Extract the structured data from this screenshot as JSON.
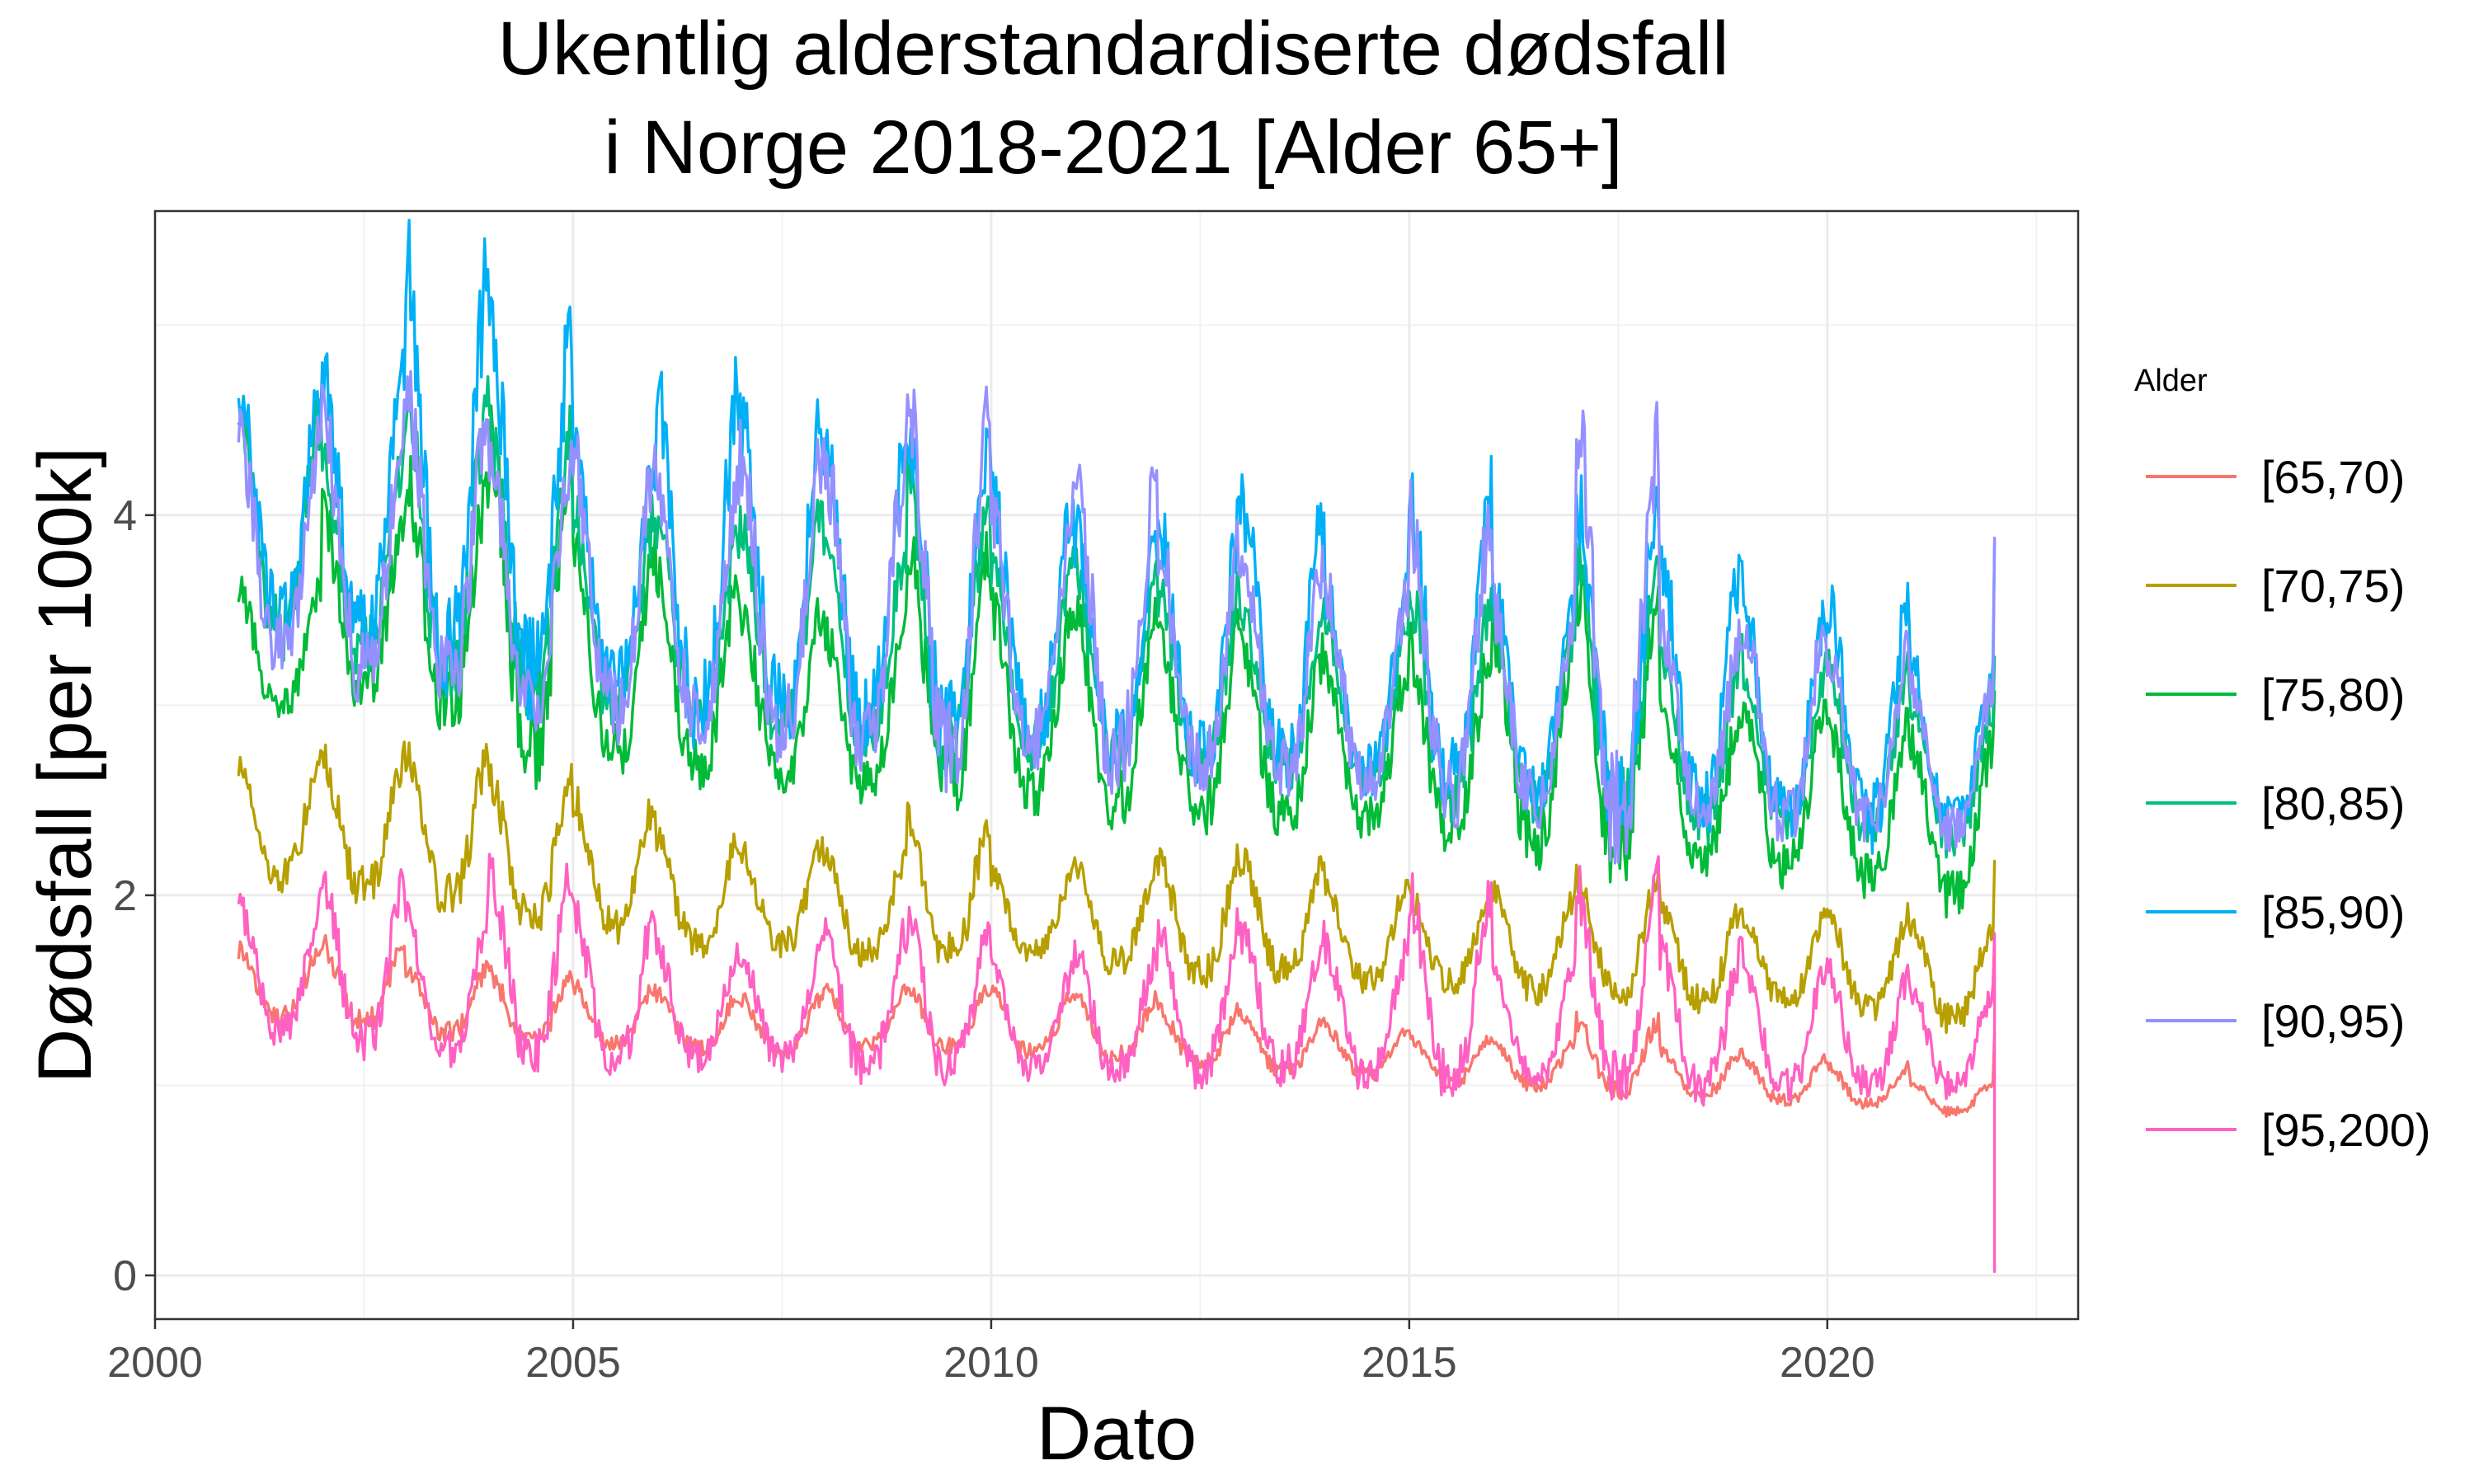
{
  "chart_data": {
    "type": "line",
    "title": [
      "Ukentlig alderstandardiserte dødsfall",
      "i Norge 2018-2021 [Alder 65+]"
    ],
    "xlabel": "Dato",
    "ylabel": "Dødsfall [per 100k]",
    "xlim": [
      2000,
      2023
    ],
    "ylim": [
      -0.23,
      5.6
    ],
    "x_ticks": [
      2000,
      2005,
      2010,
      2015,
      2020
    ],
    "x_tick_labels": [
      "2000",
      "2005",
      "2010",
      "2015",
      "2020"
    ],
    "y_ticks": [
      0,
      2,
      4
    ],
    "y_tick_labels": [
      "0",
      "2",
      "4"
    ],
    "grid": true,
    "legend": {
      "title": "Alder",
      "position": "right"
    },
    "x_start": 2001.0,
    "x_end": 2022.0,
    "weeks_per_year": 52,
    "series": [
      {
        "name": "[65,70)",
        "color": "#F8766D",
        "yearly_winter_peak": [
          1.72,
          1.74,
          1.62,
          1.58,
          1.52,
          1.48,
          1.46,
          1.5,
          1.52,
          1.48,
          1.46,
          1.4,
          1.34,
          1.3,
          1.26,
          1.22,
          1.34,
          1.18,
          1.14,
          1.1,
          1.02,
          1.24
        ],
        "yearly_summer_low": [
          1.36,
          1.34,
          1.28,
          1.24,
          1.22,
          1.2,
          1.18,
          1.22,
          1.2,
          1.18,
          1.16,
          1.12,
          1.08,
          1.06,
          1.02,
          1.0,
          0.98,
          0.96,
          0.92,
          0.9,
          0.86,
          0.94
        ]
      },
      {
        "name": "[70,75)",
        "color": "#B79F00",
        "yearly_winter_peak": [
          2.7,
          2.72,
          2.75,
          2.6,
          2.5,
          2.3,
          2.25,
          2.2,
          2.4,
          2.1,
          2.15,
          2.2,
          2.2,
          2.05,
          2.0,
          2.0,
          2.1,
          1.95,
          1.9,
          1.9,
          1.85,
          2.1
        ],
        "yearly_summer_low": [
          2.1,
          2.05,
          2.0,
          1.9,
          1.85,
          1.75,
          1.75,
          1.7,
          1.7,
          1.7,
          1.65,
          1.6,
          1.6,
          1.55,
          1.55,
          1.5,
          1.5,
          1.45,
          1.45,
          1.4,
          1.35,
          1.4
        ]
      },
      {
        "name": "[75,80)",
        "color": "#00BA38",
        "yearly_winter_peak": [
          3.6,
          4.0,
          4.2,
          4.4,
          3.8,
          3.7,
          3.5,
          3.4,
          3.8,
          3.5,
          3.5,
          3.4,
          3.3,
          3.2,
          3.3,
          3.4,
          3.6,
          3.0,
          3.0,
          2.9,
          2.8,
          3.0
        ],
        "yearly_summer_low": [
          3.0,
          3.1,
          3.0,
          2.8,
          2.75,
          2.7,
          2.65,
          2.6,
          2.6,
          2.55,
          2.5,
          2.45,
          2.4,
          2.4,
          2.35,
          2.3,
          2.25,
          2.2,
          2.15,
          2.1,
          2.0,
          2.2
        ]
      },
      {
        "name": "[80,85)",
        "color": "#00BF7D",
        "yearly_winter_peak": [
          4.55,
          4.3,
          4.6,
          4.4,
          4.0,
          3.9,
          4.0,
          3.8,
          4.2,
          3.7,
          3.7,
          3.6,
          3.5,
          3.4,
          3.6,
          3.4,
          3.8,
          3.3,
          3.2,
          3.2,
          3.0,
          3.2
        ],
        "yearly_summer_low": [
          3.4,
          3.3,
          3.2,
          3.1,
          3.0,
          2.95,
          2.9,
          2.85,
          2.8,
          2.8,
          2.75,
          2.7,
          2.65,
          2.6,
          2.55,
          2.5,
          2.45,
          2.4,
          2.4,
          2.35,
          2.3,
          2.4
        ]
      },
      {
        "name": "[85,90)",
        "color": "#00B0F6",
        "yearly_winter_peak": [
          4.65,
          4.75,
          5.3,
          5.0,
          4.3,
          4.65,
          4.5,
          4.4,
          4.5,
          4.1,
          3.9,
          3.95,
          4.05,
          3.6,
          4.1,
          3.6,
          4.1,
          3.78,
          3.5,
          3.55,
          3.2,
          3.8
        ],
        "yearly_summer_low": [
          3.5,
          3.4,
          3.3,
          3.2,
          3.1,
          3.0,
          3.0,
          2.95,
          2.9,
          2.85,
          2.8,
          2.75,
          2.7,
          2.65,
          2.6,
          2.55,
          2.5,
          2.5,
          2.45,
          2.4,
          2.4,
          2.5
        ]
      },
      {
        "name": "[90,95)",
        "color": "#9590FF",
        "yearly_winter_peak": [
          4.4,
          4.5,
          4.65,
          4.3,
          4.3,
          4.2,
          4.3,
          4.3,
          4.55,
          4.0,
          4.2,
          3.85,
          3.8,
          3.6,
          4.0,
          3.5,
          4.45,
          3.4,
          3.45,
          3.3,
          3.1,
          3.85
        ],
        "yearly_summer_low": [
          3.3,
          3.2,
          3.15,
          3.05,
          3.0,
          2.95,
          2.9,
          2.85,
          2.8,
          2.8,
          2.75,
          2.7,
          2.65,
          2.6,
          2.55,
          2.5,
          2.45,
          2.45,
          2.4,
          2.4,
          2.35,
          2.45
        ]
      },
      {
        "name": "[95,200)",
        "color": "#FF61C3",
        "yearly_winter_peak": [
          1.95,
          2.1,
          1.9,
          2.1,
          1.9,
          1.7,
          1.7,
          1.8,
          1.85,
          1.6,
          1.7,
          1.85,
          1.8,
          1.7,
          2.0,
          1.6,
          2.05,
          1.7,
          1.6,
          1.6,
          1.5,
          1.8
        ],
        "yearly_summer_low": [
          1.3,
          1.25,
          1.2,
          1.2,
          1.15,
          1.15,
          1.15,
          1.1,
          1.1,
          1.1,
          1.1,
          1.1,
          1.1,
          1.05,
          1.05,
          1.05,
          1.05,
          1.0,
          1.0,
          1.0,
          1.0,
          1.05
        ],
        "final_value": 0.02
      }
    ]
  }
}
